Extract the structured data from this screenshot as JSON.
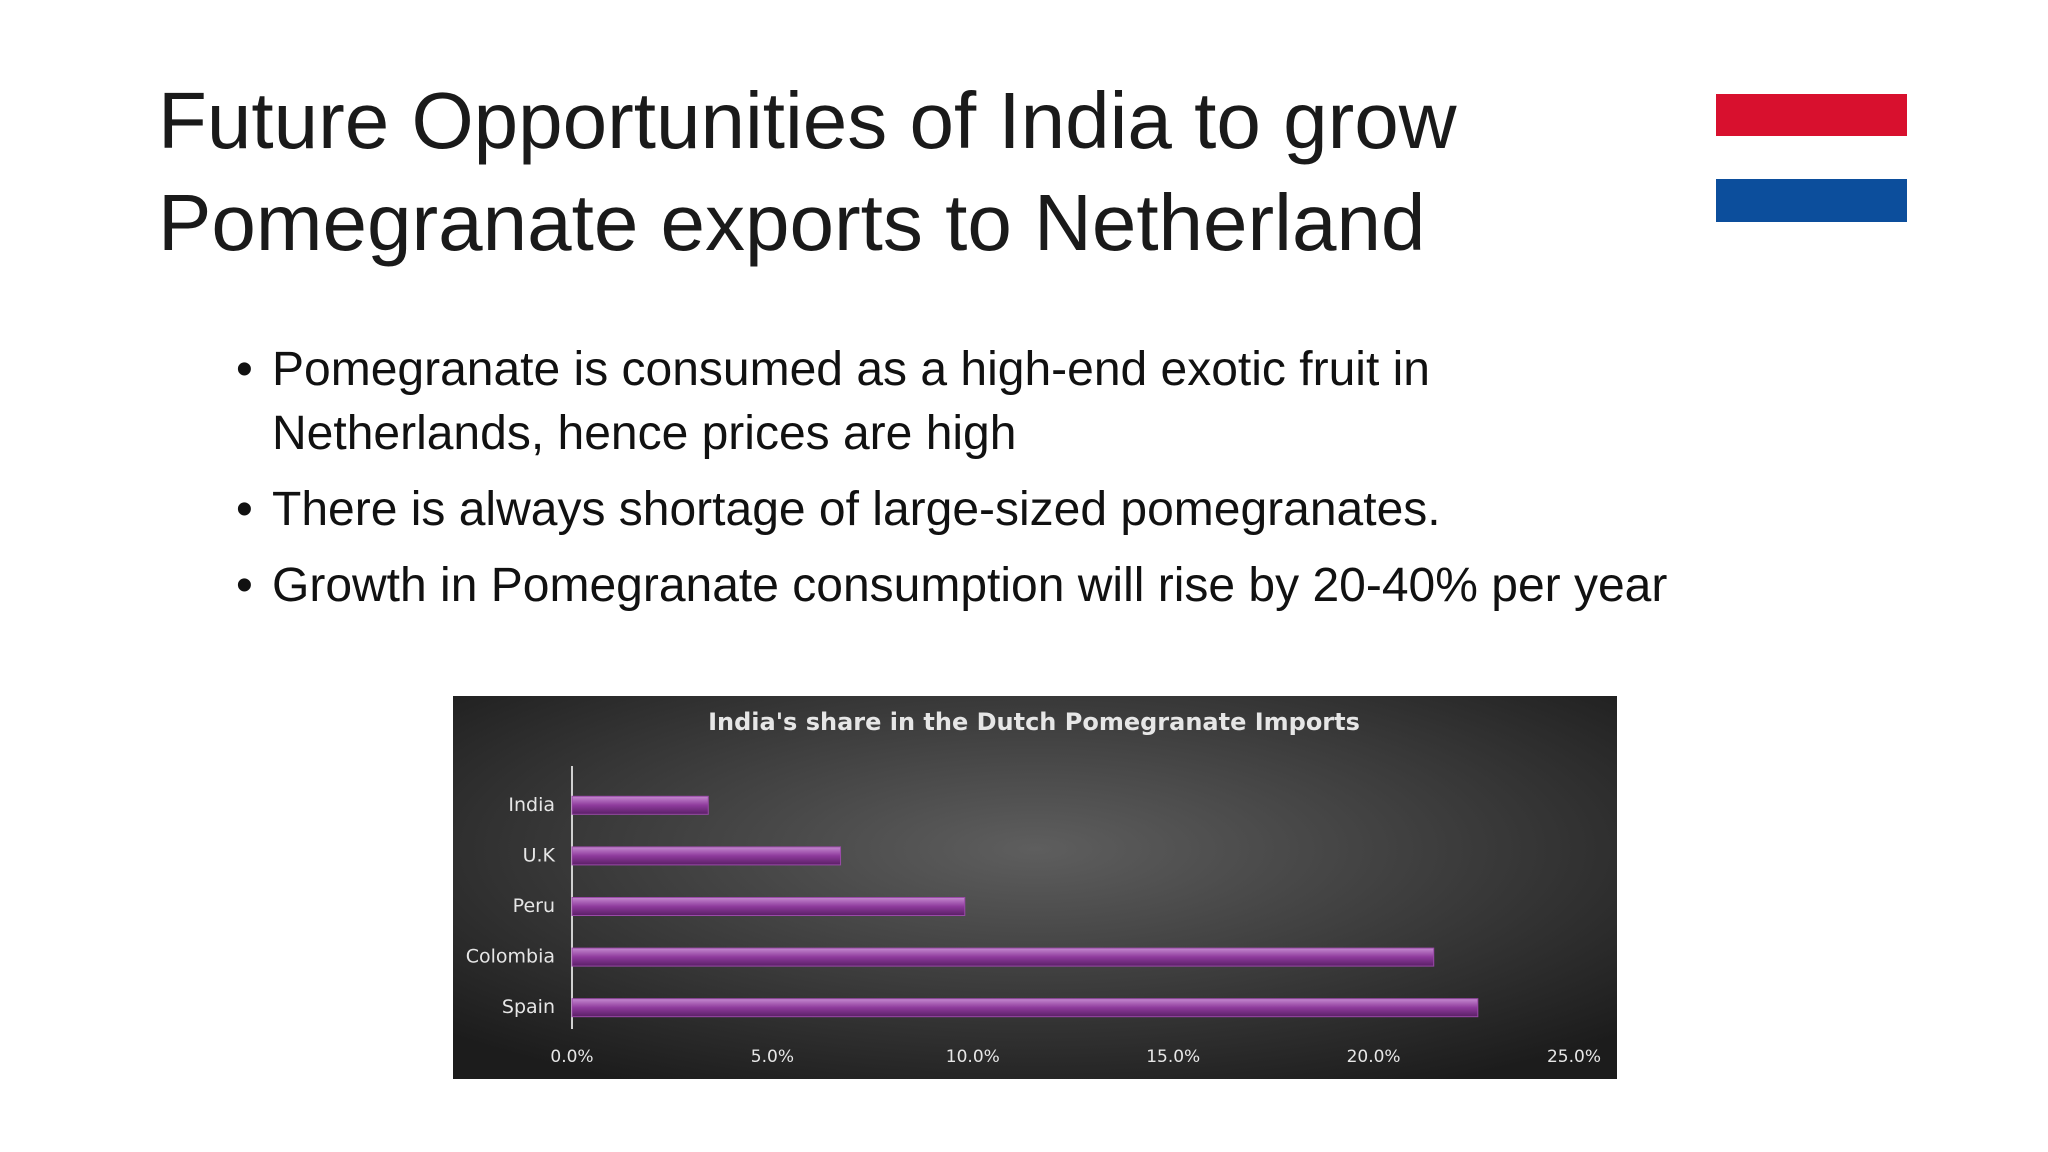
{
  "slide": {
    "title": "Future Opportunities of India to grow Pomegranate exports to Netherland",
    "bullets": [
      "Pomegranate is consumed as a high-end exotic fruit in Netherlands, hence prices are high",
      "There is always shortage of large-sized pomegranates.",
      "Growth in Pomegranate consumption will rise by 20-40% per year"
    ]
  },
  "chart_data": {
    "type": "bar",
    "orientation": "horizontal",
    "title": "India's share in the Dutch Pomegranate Imports",
    "categories": [
      "India",
      "U.K",
      "Peru",
      "Colombia",
      "Spain"
    ],
    "values": [
      3.4,
      6.7,
      9.8,
      21.5,
      22.6
    ],
    "color": "#9a4aa8",
    "xlim": [
      0,
      25
    ],
    "xticks": [
      {
        "value": 0,
        "label": "0.0%"
      },
      {
        "value": 5,
        "label": "5.0%"
      },
      {
        "value": 10,
        "label": "10.0%"
      },
      {
        "value": 15,
        "label": "15.0%"
      },
      {
        "value": 20,
        "label": "20.0%"
      },
      {
        "value": 25,
        "label": "25.0%"
      }
    ],
    "grid": false
  }
}
